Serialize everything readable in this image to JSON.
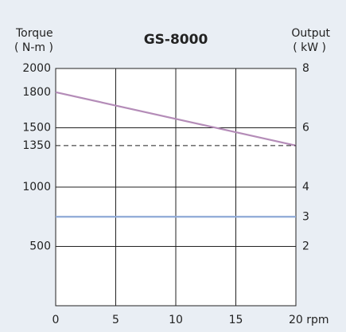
{
  "chart_data": {
    "type": "line",
    "title": "GS-8000",
    "ylabel": [
      "Torque",
      "( N-m )"
    ],
    "y2label": [
      "Output",
      "( kW )"
    ],
    "x": [
      0,
      20
    ],
    "series": [
      {
        "color": "#b48cb8",
        "values": [
          1800,
          1350
        ],
        "style": "solid"
      },
      {
        "color": "#222222",
        "values": [
          1350,
          1350
        ],
        "style": "dashed"
      },
      {
        "color": "#8ea9d6",
        "values": [
          3,
          3
        ],
        "axis": "y2",
        "style": "solid"
      }
    ],
    "xlim": [
      0,
      20
    ],
    "xticks": [
      0,
      5,
      10,
      15,
      {
        "value": 20,
        "label": "20 rpm"
      }
    ],
    "ylim": [
      0,
      2000
    ],
    "yticks": [
      500,
      1000,
      1350,
      1500,
      1800,
      2000
    ],
    "y2lim": [
      0,
      8
    ],
    "y2ticks": [
      2,
      3,
      4,
      6,
      8
    ],
    "grid": true
  }
}
